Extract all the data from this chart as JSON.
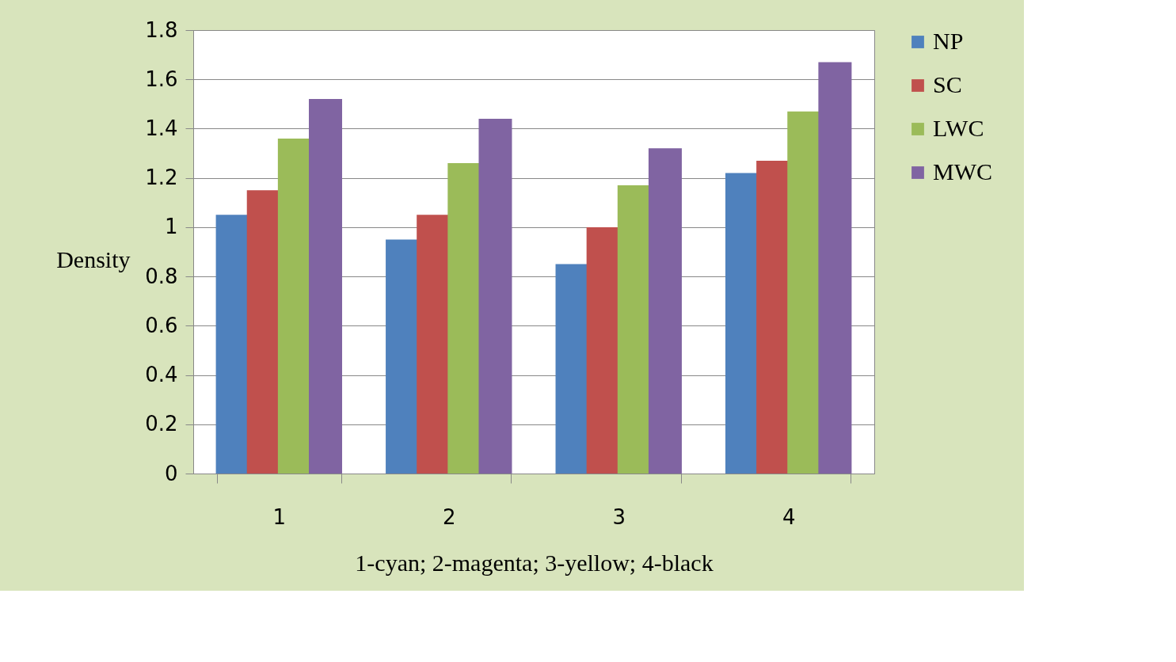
{
  "chart_data": {
    "type": "bar",
    "xlabel": "1-cyan; 2-magenta; 3-yellow; 4-black",
    "ylabel": "Density",
    "categories": [
      "1",
      "2",
      "3",
      "4"
    ],
    "series": [
      {
        "name": "NP",
        "color": "#4f81bd",
        "values": [
          1.05,
          0.95,
          0.85,
          1.22
        ]
      },
      {
        "name": "SC",
        "color": "#c0504d",
        "values": [
          1.15,
          1.05,
          1.0,
          1.27
        ]
      },
      {
        "name": "LWC",
        "color": "#9bbb59",
        "values": [
          1.36,
          1.26,
          1.17,
          1.47
        ]
      },
      {
        "name": "MWC",
        "color": "#8064a2",
        "values": [
          1.52,
          1.44,
          1.32,
          1.67
        ]
      }
    ],
    "ylim": [
      0,
      1.8
    ],
    "yticks": [
      0,
      0.2,
      0.4,
      0.6,
      0.8,
      1,
      1.2,
      1.4,
      1.6,
      1.8
    ],
    "grid": "y",
    "legend": "right"
  }
}
